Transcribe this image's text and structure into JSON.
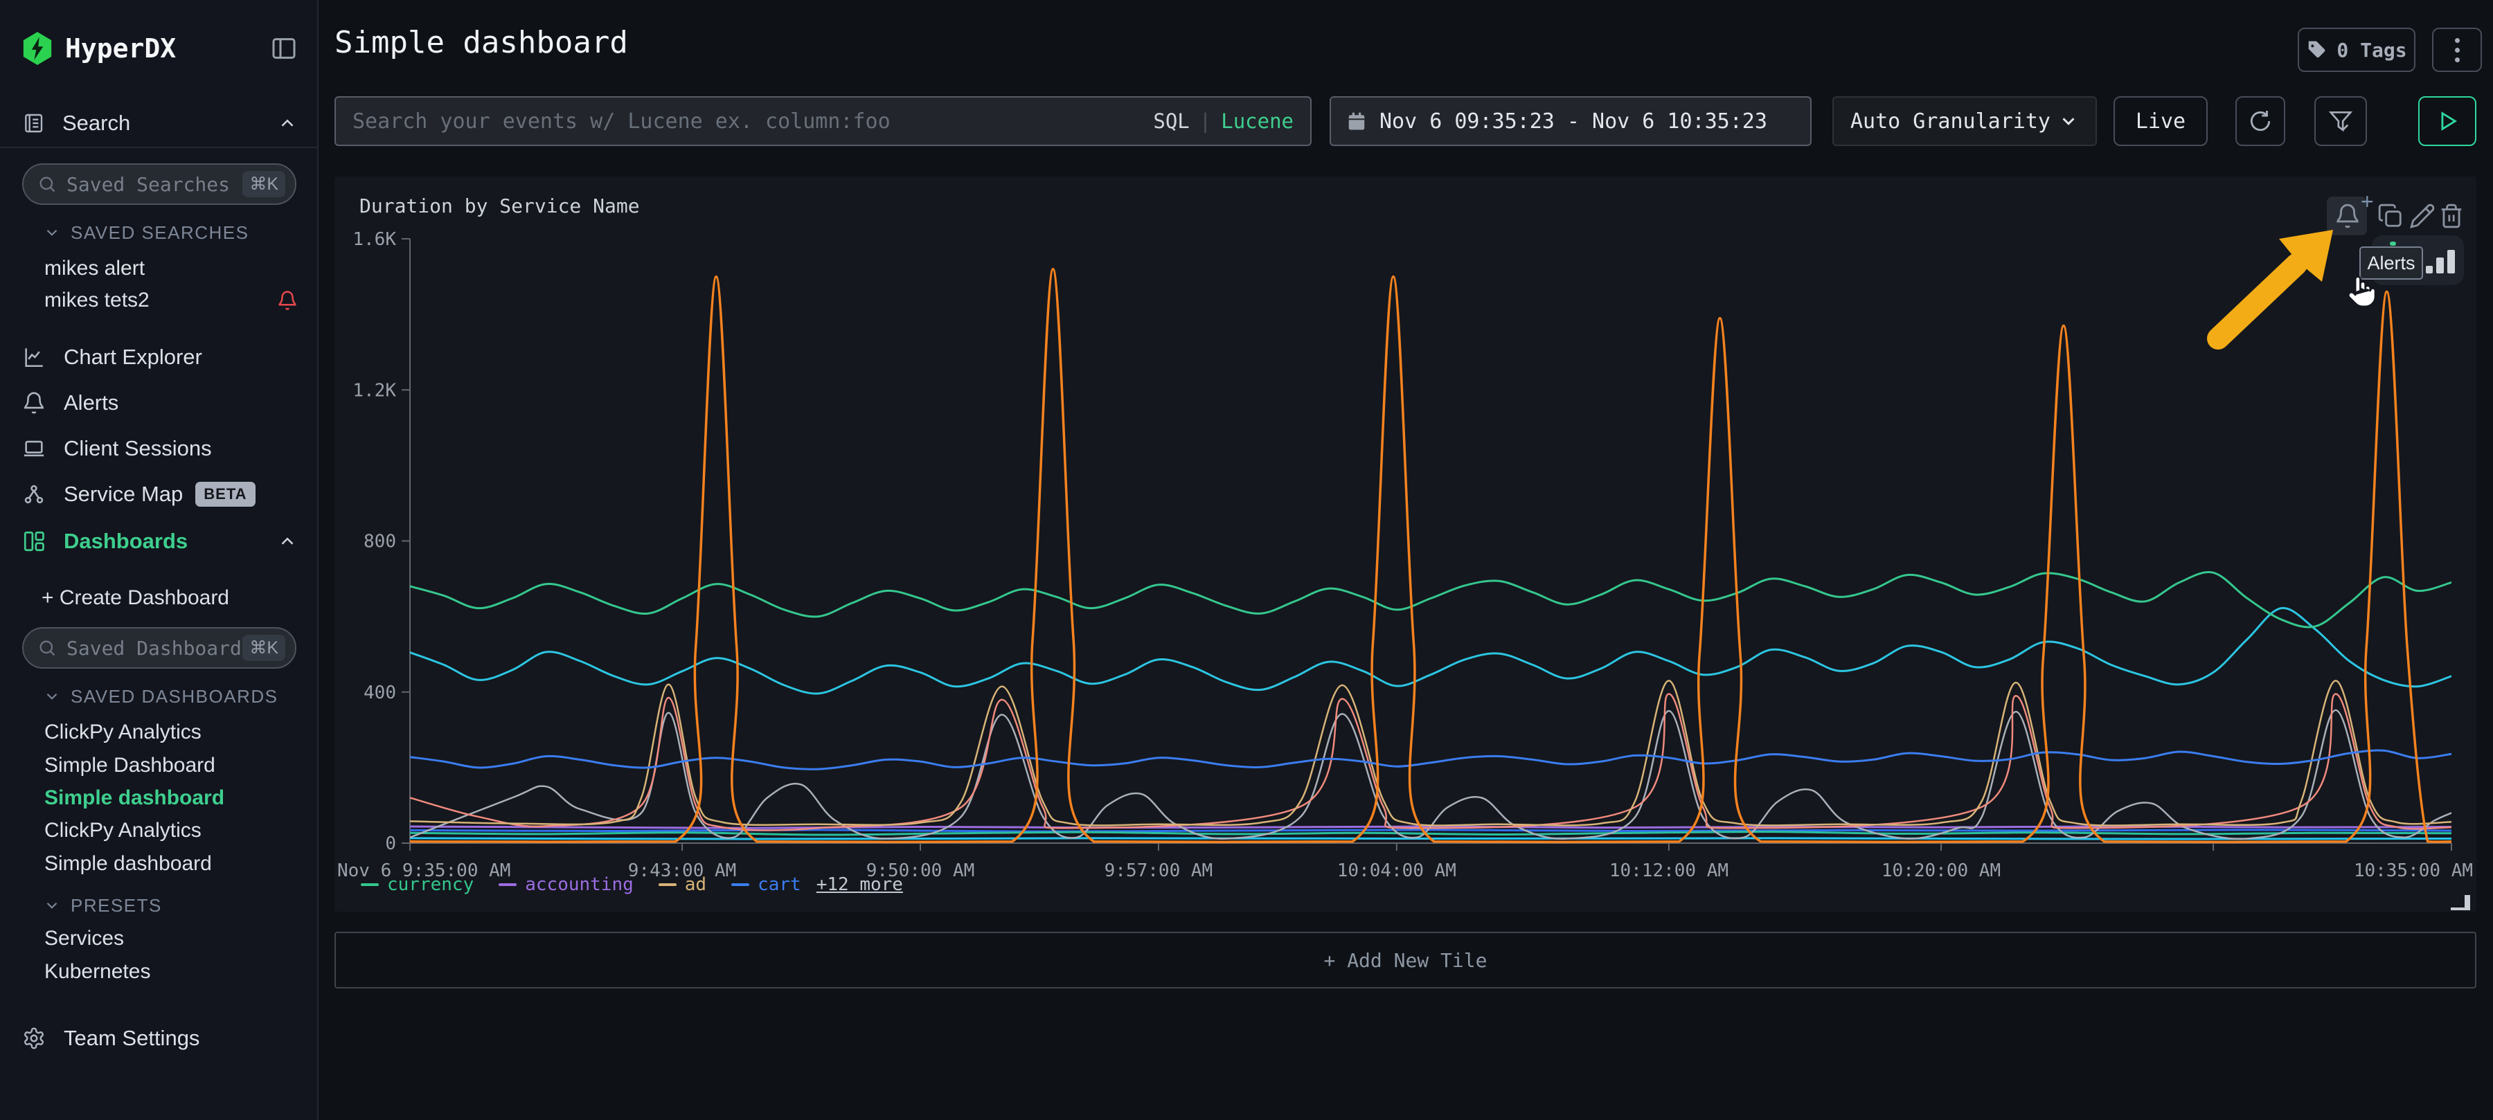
{
  "sidebar": {
    "brand": "HyperDX",
    "nav_search_label": "Search",
    "saved_searches_placeholder": "Saved Searches",
    "shortcut": "⌘K",
    "saved_searches_header": "SAVED SEARCHES",
    "saved_searches": [
      "mikes alert",
      "mikes tets2"
    ],
    "items": {
      "chart_explorer": "Chart Explorer",
      "alerts": "Alerts",
      "client_sessions": "Client Sessions",
      "service_map": "Service Map",
      "service_map_badge": "BETA",
      "dashboards": "Dashboards"
    },
    "create_dashboard_label": "+ Create Dashboard",
    "saved_dashboards_placeholder": "Saved Dashboards",
    "saved_dashboards_header": "SAVED DASHBOARDS",
    "saved_dashboards": [
      "ClickPy Analytics",
      "Simple Dashboard",
      "Simple dashboard",
      "ClickPy Analytics",
      "Simple dashboard"
    ],
    "active_dashboard": "Simple dashboard",
    "presets_header": "PRESETS",
    "presets": [
      "Services",
      "Kubernetes"
    ],
    "team_settings_label": "Team Settings"
  },
  "header": {
    "title": "Simple dashboard",
    "tags_label": "0 Tags"
  },
  "toolbar": {
    "search_placeholder": "Search your events w/ Lucene ex. column:foo",
    "sql_label": "SQL",
    "divider": "|",
    "lucene_label": "Lucene",
    "time_range": "Nov 6 09:35:23 - Nov 6 10:35:23",
    "granularity": "Auto Granularity",
    "live_label": "Live"
  },
  "tile": {
    "title": "Duration by Service Name",
    "tooltip_label": "Alerts"
  },
  "add_tile_label": "+ Add New Tile",
  "colors": {
    "accent": "#3ecf8e",
    "arrow": "#f3ac16",
    "alert_bell": "#e5484d"
  },
  "chart_data": {
    "type": "line",
    "title": "Duration by Service Name",
    "xlabel": "",
    "ylabel": "",
    "ylim": [
      0,
      1600
    ],
    "x_domain_minutes": [
      0,
      60
    ],
    "grid": false,
    "legend_position": "bottom-left",
    "y_ticks": [
      {
        "v": 0,
        "label": "0"
      },
      {
        "v": 400,
        "label": "400"
      },
      {
        "v": 800,
        "label": "800"
      },
      {
        "v": 1200,
        "label": "1.2K"
      },
      {
        "v": 1600,
        "label": "1.6K"
      }
    ],
    "x_ticks": [
      {
        "m": 0,
        "label": "Nov 6 9:35:00 AM",
        "anchor": "start"
      },
      {
        "m": 8,
        "label": "9:43:00 AM"
      },
      {
        "m": 15,
        "label": "9:50:00 AM"
      },
      {
        "m": 22,
        "label": "9:57:00 AM"
      },
      {
        "m": 29,
        "label": "10:04:00 AM"
      },
      {
        "m": 37,
        "label": "10:12:00 AM"
      },
      {
        "m": 45,
        "label": "10:20:00 AM"
      },
      {
        "m": 53,
        "label": ""
      },
      {
        "m": 60,
        "label": "10:35:00 AM",
        "anchor": "end"
      }
    ],
    "legend": [
      {
        "label": "currency",
        "color": "#35c78e"
      },
      {
        "label": "accounting",
        "color": "#9c6de2"
      },
      {
        "label": "ad",
        "color": "#d8b478"
      },
      {
        "label": "cart",
        "color": "#3b7df0"
      }
    ],
    "legend_more": "+12 more",
    "series": [
      {
        "name": "accounting",
        "color": "#9c6de2",
        "width": 3,
        "start": 0,
        "step": 5,
        "values": [
          44,
          42,
          40,
          43,
          41,
          42,
          44,
          41,
          43,
          42,
          44,
          42,
          43
        ]
      },
      {
        "name": "",
        "color": "#2f6fed",
        "width": 3,
        "start": 0,
        "step": 6,
        "values": [
          34,
          32,
          35,
          31,
          33,
          35,
          32,
          34,
          33,
          35,
          33
        ]
      },
      {
        "name": "",
        "color": "#2abf9d",
        "width": 3,
        "start": 0,
        "step": 4,
        "values": [
          27,
          24,
          28,
          22,
          26,
          29,
          24,
          27,
          23,
          27,
          30,
          25,
          28,
          24,
          27,
          26
        ]
      },
      {
        "name": "",
        "color": "#26c6f0",
        "width": 3,
        "start": 0,
        "step": 10,
        "values": [
          13,
          11,
          13,
          12,
          13,
          11,
          12
        ]
      },
      {
        "name": "",
        "color": "#a9b0ba",
        "width": 2.5,
        "points": [
          [
            0,
            15
          ],
          [
            3,
            120
          ],
          [
            4,
            150
          ],
          [
            5,
            90
          ],
          [
            6.8,
            80
          ],
          [
            7.6,
            345
          ],
          [
            8.4,
            80
          ],
          [
            9.5,
            15
          ],
          [
            10.5,
            120
          ],
          [
            11.5,
            155
          ],
          [
            12.5,
            60
          ],
          [
            14,
            12
          ],
          [
            16.2,
            70
          ],
          [
            17.4,
            340
          ],
          [
            18.6,
            70
          ],
          [
            19.6,
            15
          ],
          [
            20.5,
            100
          ],
          [
            21.5,
            130
          ],
          [
            22.5,
            50
          ],
          [
            24,
            12
          ],
          [
            26.2,
            72
          ],
          [
            27.4,
            342
          ],
          [
            28.6,
            72
          ],
          [
            29.6,
            15
          ],
          [
            30.5,
            95
          ],
          [
            31.5,
            120
          ],
          [
            32.5,
            45
          ],
          [
            34,
            12
          ],
          [
            36,
            68
          ],
          [
            37,
            350
          ],
          [
            38,
            68
          ],
          [
            39.2,
            15
          ],
          [
            40.2,
            110
          ],
          [
            41.2,
            140
          ],
          [
            42.2,
            55
          ],
          [
            44,
            12
          ],
          [
            45.5,
            40
          ],
          [
            46.2,
            70
          ],
          [
            47.2,
            348
          ],
          [
            48.2,
            70
          ],
          [
            49.2,
            15
          ],
          [
            50.2,
            85
          ],
          [
            51.2,
            105
          ],
          [
            52.2,
            40
          ],
          [
            54,
            12
          ],
          [
            55.6,
            72
          ],
          [
            56.6,
            352
          ],
          [
            57.6,
            72
          ],
          [
            58.6,
            15
          ],
          [
            59.5,
            60
          ],
          [
            60,
            80
          ]
        ]
      },
      {
        "name": "",
        "color": "#f08a7e",
        "width": 2.5,
        "points": [
          [
            0,
            120
          ],
          [
            2,
            70
          ],
          [
            4,
            45
          ],
          [
            6.8,
            100
          ],
          [
            7.6,
            385
          ],
          [
            8.4,
            100
          ],
          [
            9.2,
            42
          ],
          [
            12,
            40
          ],
          [
            16.2,
            95
          ],
          [
            17.4,
            380
          ],
          [
            18.6,
            95
          ],
          [
            19.4,
            40
          ],
          [
            26.2,
            98
          ],
          [
            27.4,
            382
          ],
          [
            28.6,
            98
          ],
          [
            29.4,
            40
          ],
          [
            36,
            95
          ],
          [
            37,
            395
          ],
          [
            38,
            95
          ],
          [
            39,
            40
          ],
          [
            46.2,
            96
          ],
          [
            47.2,
            390
          ],
          [
            48.2,
            96
          ],
          [
            49,
            40
          ],
          [
            55.6,
            98
          ],
          [
            56.6,
            395
          ],
          [
            57.6,
            98
          ],
          [
            58.4,
            42
          ],
          [
            60,
            42
          ]
        ]
      },
      {
        "name": "ad",
        "color": "#d8b478",
        "width": 2.5,
        "points": [
          [
            0,
            58
          ],
          [
            3,
            52
          ],
          [
            6,
            56
          ],
          [
            6.8,
            120
          ],
          [
            7.6,
            420
          ],
          [
            8.4,
            120
          ],
          [
            9.2,
            55
          ],
          [
            12,
            50
          ],
          [
            15,
            54
          ],
          [
            16.2,
            110
          ],
          [
            17.4,
            415
          ],
          [
            18.6,
            110
          ],
          [
            19.4,
            52
          ],
          [
            22,
            50
          ],
          [
            25,
            54
          ],
          [
            26.2,
            115
          ],
          [
            27.4,
            418
          ],
          [
            28.6,
            115
          ],
          [
            29.4,
            52
          ],
          [
            32,
            50
          ],
          [
            35,
            52
          ],
          [
            36,
            110
          ],
          [
            37,
            430
          ],
          [
            38,
            110
          ],
          [
            39,
            52
          ],
          [
            42,
            50
          ],
          [
            45,
            54
          ],
          [
            46.2,
            112
          ],
          [
            47.2,
            425
          ],
          [
            48.2,
            112
          ],
          [
            49,
            52
          ],
          [
            52,
            50
          ],
          [
            55,
            54
          ],
          [
            55.6,
            115
          ],
          [
            56.6,
            430
          ],
          [
            57.6,
            115
          ],
          [
            58.4,
            55
          ],
          [
            60,
            56
          ]
        ]
      },
      {
        "name": "cart",
        "color": "#3b7df0",
        "width": 3,
        "start": 0,
        "step": 1,
        "values": [
          228,
          216,
          200,
          210,
          230,
          221,
          206,
          200,
          216,
          226,
          216,
          200,
          196,
          206,
          221,
          216,
          201,
          211,
          226,
          216,
          206,
          211,
          226,
          219,
          206,
          201,
          213,
          223,
          216,
          203,
          213,
          226,
          230,
          221,
          209,
          216,
          232,
          226,
          211,
          219,
          235,
          228,
          216,
          221,
          238,
          230,
          218,
          222,
          240,
          235,
          220,
          225,
          242,
          230,
          215,
          210,
          220,
          238,
          245,
          225,
          236
        ]
      },
      {
        "name": "",
        "color": "#2cc5e2",
        "width": 3,
        "start": 0,
        "step": 1,
        "values": [
          505,
          472,
          432,
          458,
          506,
          482,
          442,
          420,
          455,
          490,
          462,
          418,
          396,
          430,
          470,
          452,
          415,
          436,
          476,
          456,
          422,
          446,
          486,
          466,
          426,
          406,
          440,
          480,
          456,
          416,
          446,
          486,
          502,
          472,
          436,
          462,
          506,
          482,
          446,
          466,
          512,
          492,
          456,
          476,
          522,
          506,
          466,
          486,
          532,
          516,
          472,
          442,
          420,
          452,
          540,
          622,
          566,
          482,
          432,
          415,
          442
        ]
      },
      {
        "name": "currency",
        "color": "#35c78e",
        "width": 3,
        "start": 0,
        "step": 1,
        "values": [
          680,
          655,
          622,
          648,
          686,
          664,
          628,
          608,
          648,
          686,
          658,
          618,
          600,
          636,
          668,
          648,
          616,
          638,
          672,
          652,
          622,
          648,
          684,
          662,
          628,
          608,
          640,
          674,
          652,
          618,
          648,
          682,
          694,
          664,
          632,
          658,
          696,
          672,
          642,
          662,
          700,
          680,
          652,
          672,
          710,
          690,
          658,
          678,
          714,
          700,
          664,
          640,
          690,
          716,
          648,
          592,
          574,
          636,
          704,
          668,
          690
        ]
      },
      {
        "name": "",
        "color": "#f5821f",
        "width": 3.5,
        "points": [
          [
            0,
            4
          ],
          [
            7.8,
            4
          ],
          [
            8.4,
            520
          ],
          [
            9,
            1500
          ],
          [
            9.6,
            520
          ],
          [
            10.2,
            4
          ],
          [
            17.7,
            4
          ],
          [
            18.3,
            540
          ],
          [
            18.9,
            1520
          ],
          [
            19.5,
            540
          ],
          [
            20.1,
            4
          ],
          [
            27.7,
            4
          ],
          [
            28.3,
            530
          ],
          [
            28.9,
            1500
          ],
          [
            29.5,
            530
          ],
          [
            30.1,
            4
          ],
          [
            37.3,
            4
          ],
          [
            37.9,
            500
          ],
          [
            38.5,
            1390
          ],
          [
            39.1,
            500
          ],
          [
            39.7,
            4
          ],
          [
            47.4,
            4
          ],
          [
            48,
            490
          ],
          [
            48.6,
            1370
          ],
          [
            49.2,
            490
          ],
          [
            49.8,
            4
          ],
          [
            56.9,
            4
          ],
          [
            57.5,
            520
          ],
          [
            58.1,
            1460
          ],
          [
            58.7,
            520
          ],
          [
            59.3,
            4
          ],
          [
            60,
            4
          ]
        ]
      }
    ]
  }
}
